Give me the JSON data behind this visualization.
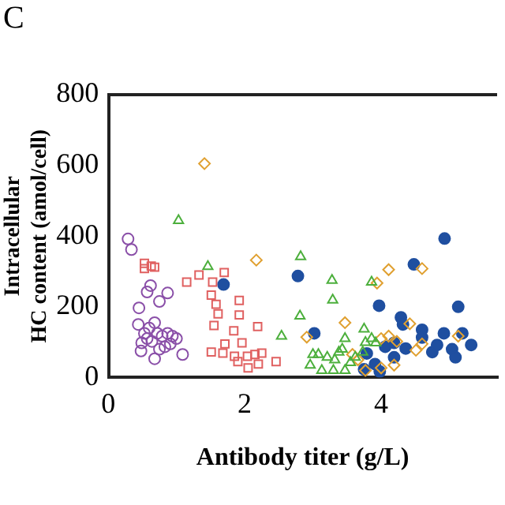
{
  "chart_data": {
    "type": "scatter",
    "xlabel": "Antibody titer (g/L)",
    "ylabel": "Intracellular HC content (amol/cell)",
    "annotations": [
      "C"
    ],
    "xlim": [
      0,
      5.7
    ],
    "xticks": [
      0,
      2,
      4
    ],
    "ylim": [
      0,
      800
    ],
    "yticks": [
      0,
      200,
      400,
      600,
      800
    ],
    "grid": false,
    "legend": false,
    "series": [
      {
        "color": "#8a4fa8",
        "marker": "circle",
        "x": [
          0.29,
          0.34,
          0.45,
          0.44,
          0.57,
          0.62,
          0.75,
          0.87,
          0.49,
          0.53,
          0.6,
          0.68,
          0.72,
          0.79,
          0.87,
          1.0,
          1.09,
          0.48,
          0.68,
          0.75,
          0.83,
          0.91,
          0.57,
          0.64,
          0.94
        ],
        "values": [
          392,
          362,
          197,
          150,
          242,
          260,
          215,
          239,
          98,
          125,
          140,
          155,
          125,
          117,
          125,
          110,
          65,
          75,
          53,
          80,
          87,
          95,
          110,
          102,
          117
        ]
      },
      {
        "color": "#e06060",
        "marker": "square",
        "x": [
          0.53,
          0.53,
          0.63,
          0.68,
          1.15,
          1.33,
          1.53,
          1.7,
          1.51,
          1.58,
          1.61,
          1.55,
          1.92,
          1.92,
          1.84,
          2.19,
          1.96,
          1.71,
          1.51,
          1.68,
          1.85,
          1.9,
          2.05,
          2.04,
          2.15,
          2.25,
          2.2,
          2.46
        ],
        "values": [
          323,
          308,
          315,
          312,
          270,
          290,
          270,
          297,
          233,
          207,
          180,
          147,
          218,
          177,
          132,
          144,
          98,
          95,
          72,
          69,
          60,
          45,
          27,
          60,
          65,
          69,
          38,
          45
        ]
      },
      {
        "color": "#4caf3c",
        "marker": "triangle",
        "x": [
          1.03,
          1.46,
          2.82,
          3.28,
          3.29,
          2.81,
          2.54,
          3.86,
          3.75,
          3.77,
          3.86,
          3.92,
          3.0,
          3.08,
          2.96,
          3.21,
          3.13,
          3.3,
          3.38,
          3.43,
          3.47,
          3.47,
          3.55,
          3.62,
          3.73,
          3.32
        ],
        "values": [
          444,
          314,
          342,
          275,
          219,
          174,
          117,
          270,
          137,
          99,
          110,
          98,
          65,
          65,
          35,
          57,
          20,
          20,
          72,
          80,
          110,
          20,
          42,
          57,
          72,
          50
        ]
      },
      {
        "color": "#e0a030",
        "marker": "diamond",
        "x": [
          1.41,
          2.17,
          2.91,
          3.47,
          3.58,
          3.66,
          3.94,
          4.11,
          4.6,
          4.0,
          4.11,
          4.23,
          4.42,
          4.51,
          4.6,
          5.13,
          4.0,
          4.19,
          3.77
        ],
        "values": [
          605,
          332,
          114,
          155,
          65,
          50,
          267,
          305,
          308,
          110,
          117,
          102,
          152,
          77,
          95,
          117,
          27,
          35,
          20
        ]
      },
      {
        "color": "#1f4fa0",
        "marker": "circle",
        "x": [
          1.69,
          2.78,
          3.02,
          3.97,
          3.79,
          3.75,
          3.91,
          3.98,
          4.06,
          4.19,
          4.29,
          4.32,
          4.36,
          4.48,
          4.6,
          4.6,
          4.75,
          4.82,
          4.92,
          4.93,
          5.13,
          5.04,
          5.09,
          5.19,
          5.32,
          4.19
        ],
        "values": [
          263,
          287,
          125,
          203,
          68,
          23,
          38,
          17,
          87,
          98,
          170,
          150,
          82,
          320,
          135,
          113,
          72,
          92,
          125,
          393,
          200,
          80,
          57,
          125,
          92,
          57
        ]
      }
    ]
  }
}
